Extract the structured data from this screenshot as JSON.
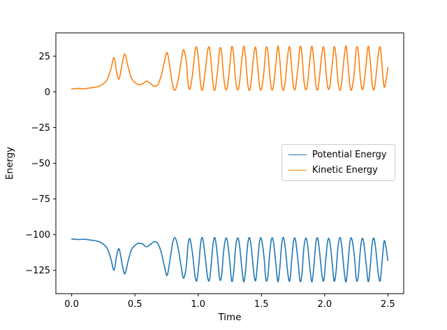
{
  "chart_data": {
    "type": "line",
    "title": "",
    "xlabel": "Time",
    "ylabel": "Energy",
    "xlim": [
      -0.125,
      2.625
    ],
    "ylim": [
      -141.3,
      41.3
    ],
    "grid": false,
    "x_ticks": [
      0.0,
      0.5,
      1.0,
      1.5,
      2.0,
      2.5
    ],
    "x_tick_labels": [
      "0.0",
      "0.5",
      "1.0",
      "1.5",
      "2.0",
      "2.5"
    ],
    "y_ticks": [
      25,
      0,
      -25,
      -50,
      -75,
      -100,
      -125
    ],
    "y_tick_labels": [
      "25",
      "0",
      "−25",
      "−50",
      "−75",
      "−100",
      "−125"
    ],
    "legend": {
      "position": "center right",
      "entries": [
        {
          "label": "Potential Energy",
          "color": "#1f77b4"
        },
        {
          "label": "Kinetic Energy",
          "color": "#ff7f0e"
        }
      ]
    },
    "series": [
      {
        "name": "Potential Energy",
        "color": "#1f77b4",
        "points": [
          [
            0.0,
            -103.0
          ],
          [
            0.05,
            -103.4
          ],
          [
            0.1,
            -103.2
          ],
          [
            0.15,
            -103.8
          ],
          [
            0.2,
            -104.5
          ],
          [
            0.24,
            -106.0
          ],
          [
            0.28,
            -109.5
          ],
          [
            0.31,
            -117.0
          ],
          [
            0.335,
            -125.0
          ],
          [
            0.355,
            -115.0
          ],
          [
            0.375,
            -110.0
          ],
          [
            0.4,
            -121.0
          ],
          [
            0.42,
            -127.5
          ],
          [
            0.445,
            -119.0
          ],
          [
            0.47,
            -111.0
          ],
          [
            0.5,
            -107.5
          ],
          [
            0.53,
            -106.0
          ],
          [
            0.56,
            -106.5
          ],
          [
            0.59,
            -108.5
          ],
          [
            0.62,
            -107.0
          ],
          [
            0.65,
            -105.0
          ],
          [
            0.68,
            -106.0
          ],
          [
            0.71,
            -113.0
          ],
          [
            0.735,
            -123.0
          ],
          [
            0.755,
            -128.5
          ],
          [
            0.775,
            -119.0
          ],
          [
            0.8,
            -105.0
          ],
          [
            0.82,
            -102.5
          ],
          [
            0.845,
            -111.0
          ],
          [
            0.87,
            -125.0
          ],
          [
            0.885,
            -130.5
          ],
          [
            0.905,
            -123.0
          ],
          [
            0.92,
            -107.0
          ],
          [
            0.935,
            -103.0
          ],
          [
            0.955,
            -113.0
          ],
          [
            0.975,
            -129.0
          ],
          [
            0.99,
            -132.0
          ],
          [
            1.005,
            -121.0
          ],
          [
            1.02,
            -106.0
          ],
          [
            1.035,
            -102.5
          ],
          [
            1.055,
            -115.0
          ],
          [
            1.075,
            -130.0
          ],
          [
            1.09,
            -131.5
          ],
          [
            1.105,
            -119.0
          ],
          [
            1.12,
            -105.0
          ],
          [
            1.135,
            -103.0
          ],
          [
            1.155,
            -117.0
          ],
          [
            1.17,
            -131.0
          ],
          [
            1.185,
            -129.0
          ],
          [
            1.2,
            -113.0
          ],
          [
            1.215,
            -103.5
          ],
          [
            1.23,
            -104.0
          ],
          [
            1.25,
            -119.0
          ],
          [
            1.265,
            -132.5
          ],
          [
            1.28,
            -127.0
          ],
          [
            1.295,
            -110.0
          ],
          [
            1.31,
            -102.5
          ],
          [
            1.325,
            -106.0
          ],
          [
            1.345,
            -123.0
          ],
          [
            1.36,
            -133.0
          ],
          [
            1.375,
            -125.0
          ],
          [
            1.39,
            -108.0
          ],
          [
            1.405,
            -102.0
          ],
          [
            1.42,
            -109.0
          ],
          [
            1.44,
            -127.0
          ],
          [
            1.455,
            -132.0
          ],
          [
            1.47,
            -119.0
          ],
          [
            1.485,
            -105.0
          ],
          [
            1.5,
            -103.0
          ],
          [
            1.52,
            -115.0
          ],
          [
            1.535,
            -131.0
          ],
          [
            1.55,
            -130.0
          ],
          [
            1.565,
            -114.0
          ],
          [
            1.58,
            -103.0
          ],
          [
            1.595,
            -105.0
          ],
          [
            1.615,
            -121.0
          ],
          [
            1.63,
            -133.0
          ],
          [
            1.645,
            -124.0
          ],
          [
            1.66,
            -107.0
          ],
          [
            1.675,
            -102.0
          ],
          [
            1.69,
            -110.0
          ],
          [
            1.71,
            -128.0
          ],
          [
            1.725,
            -132.0
          ],
          [
            1.74,
            -117.0
          ],
          [
            1.755,
            -104.0
          ],
          [
            1.77,
            -104.0
          ],
          [
            1.79,
            -119.0
          ],
          [
            1.805,
            -132.5
          ],
          [
            1.82,
            -128.0
          ],
          [
            1.835,
            -110.0
          ],
          [
            1.85,
            -102.5
          ],
          [
            1.865,
            -107.0
          ],
          [
            1.885,
            -125.0
          ],
          [
            1.9,
            -133.0
          ],
          [
            1.915,
            -122.0
          ],
          [
            1.93,
            -106.0
          ],
          [
            1.945,
            -102.5
          ],
          [
            1.96,
            -112.0
          ],
          [
            1.98,
            -129.0
          ],
          [
            1.995,
            -131.5
          ],
          [
            2.01,
            -116.0
          ],
          [
            2.025,
            -104.0
          ],
          [
            2.04,
            -104.5
          ],
          [
            2.06,
            -120.0
          ],
          [
            2.075,
            -132.5
          ],
          [
            2.09,
            -126.0
          ],
          [
            2.105,
            -109.0
          ],
          [
            2.12,
            -102.0
          ],
          [
            2.135,
            -108.0
          ],
          [
            2.155,
            -126.0
          ],
          [
            2.17,
            -133.0
          ],
          [
            2.185,
            -120.0
          ],
          [
            2.2,
            -105.0
          ],
          [
            2.215,
            -103.0
          ],
          [
            2.235,
            -115.0
          ],
          [
            2.25,
            -131.0
          ],
          [
            2.265,
            -130.0
          ],
          [
            2.28,
            -113.0
          ],
          [
            2.295,
            -103.0
          ],
          [
            2.31,
            -106.0
          ],
          [
            2.33,
            -122.0
          ],
          [
            2.345,
            -133.0
          ],
          [
            2.36,
            -123.0
          ],
          [
            2.375,
            -107.0
          ],
          [
            2.39,
            -102.5
          ],
          [
            2.405,
            -111.0
          ],
          [
            2.425,
            -128.0
          ],
          [
            2.44,
            -132.0
          ],
          [
            2.455,
            -118.0
          ],
          [
            2.47,
            -104.5
          ],
          [
            2.485,
            -109.0
          ],
          [
            2.5,
            -118.0
          ]
        ]
      },
      {
        "name": "Kinetic Energy",
        "color": "#ff7f0e",
        "points": [
          [
            0.0,
            2.0
          ],
          [
            0.05,
            2.4
          ],
          [
            0.1,
            2.2
          ],
          [
            0.15,
            2.8
          ],
          [
            0.2,
            3.5
          ],
          [
            0.24,
            5.0
          ],
          [
            0.28,
            8.5
          ],
          [
            0.31,
            16.0
          ],
          [
            0.335,
            24.0
          ],
          [
            0.355,
            14.0
          ],
          [
            0.375,
            9.0
          ],
          [
            0.4,
            20.0
          ],
          [
            0.42,
            26.5
          ],
          [
            0.445,
            18.0
          ],
          [
            0.47,
            10.0
          ],
          [
            0.5,
            6.5
          ],
          [
            0.53,
            5.0
          ],
          [
            0.56,
            5.5
          ],
          [
            0.59,
            7.5
          ],
          [
            0.62,
            6.0
          ],
          [
            0.65,
            4.0
          ],
          [
            0.68,
            5.0
          ],
          [
            0.71,
            12.0
          ],
          [
            0.735,
            22.0
          ],
          [
            0.755,
            27.5
          ],
          [
            0.775,
            18.0
          ],
          [
            0.8,
            4.0
          ],
          [
            0.82,
            1.5
          ],
          [
            0.845,
            10.0
          ],
          [
            0.87,
            24.0
          ],
          [
            0.885,
            29.5
          ],
          [
            0.905,
            22.0
          ],
          [
            0.92,
            6.0
          ],
          [
            0.935,
            2.0
          ],
          [
            0.955,
            12.0
          ],
          [
            0.975,
            28.0
          ],
          [
            0.99,
            31.0
          ],
          [
            1.005,
            20.0
          ],
          [
            1.02,
            5.0
          ],
          [
            1.035,
            1.5
          ],
          [
            1.055,
            14.0
          ],
          [
            1.075,
            29.0
          ],
          [
            1.09,
            30.5
          ],
          [
            1.105,
            18.0
          ],
          [
            1.12,
            4.0
          ],
          [
            1.135,
            2.0
          ],
          [
            1.155,
            16.0
          ],
          [
            1.17,
            30.0
          ],
          [
            1.185,
            28.0
          ],
          [
            1.2,
            12.0
          ],
          [
            1.215,
            2.5
          ],
          [
            1.23,
            3.0
          ],
          [
            1.25,
            18.0
          ],
          [
            1.265,
            31.5
          ],
          [
            1.28,
            26.0
          ],
          [
            1.295,
            9.0
          ],
          [
            1.31,
            1.5
          ],
          [
            1.325,
            5.0
          ],
          [
            1.345,
            22.0
          ],
          [
            1.36,
            32.0
          ],
          [
            1.375,
            24.0
          ],
          [
            1.39,
            7.0
          ],
          [
            1.405,
            1.0
          ],
          [
            1.42,
            8.0
          ],
          [
            1.44,
            26.0
          ],
          [
            1.455,
            31.0
          ],
          [
            1.47,
            18.0
          ],
          [
            1.485,
            4.0
          ],
          [
            1.5,
            2.0
          ],
          [
            1.52,
            14.0
          ],
          [
            1.535,
            30.0
          ],
          [
            1.55,
            29.0
          ],
          [
            1.565,
            13.0
          ],
          [
            1.58,
            2.0
          ],
          [
            1.595,
            4.0
          ],
          [
            1.615,
            20.0
          ],
          [
            1.63,
            32.0
          ],
          [
            1.645,
            23.0
          ],
          [
            1.66,
            6.0
          ],
          [
            1.675,
            1.0
          ],
          [
            1.69,
            9.0
          ],
          [
            1.71,
            27.0
          ],
          [
            1.725,
            31.0
          ],
          [
            1.74,
            16.0
          ],
          [
            1.755,
            3.0
          ],
          [
            1.77,
            3.0
          ],
          [
            1.79,
            18.0
          ],
          [
            1.805,
            31.5
          ],
          [
            1.82,
            27.0
          ],
          [
            1.835,
            9.0
          ],
          [
            1.85,
            1.5
          ],
          [
            1.865,
            6.0
          ],
          [
            1.885,
            24.0
          ],
          [
            1.9,
            32.0
          ],
          [
            1.915,
            21.0
          ],
          [
            1.93,
            5.0
          ],
          [
            1.945,
            1.5
          ],
          [
            1.96,
            11.0
          ],
          [
            1.98,
            28.0
          ],
          [
            1.995,
            30.5
          ],
          [
            2.01,
            15.0
          ],
          [
            2.025,
            3.0
          ],
          [
            2.04,
            3.5
          ],
          [
            2.06,
            19.0
          ],
          [
            2.075,
            31.5
          ],
          [
            2.09,
            25.0
          ],
          [
            2.105,
            8.0
          ],
          [
            2.12,
            1.0
          ],
          [
            2.135,
            7.0
          ],
          [
            2.155,
            25.0
          ],
          [
            2.17,
            32.0
          ],
          [
            2.185,
            19.0
          ],
          [
            2.2,
            4.0
          ],
          [
            2.215,
            2.0
          ],
          [
            2.235,
            14.0
          ],
          [
            2.25,
            30.0
          ],
          [
            2.265,
            29.0
          ],
          [
            2.28,
            12.0
          ],
          [
            2.295,
            2.0
          ],
          [
            2.31,
            5.0
          ],
          [
            2.33,
            21.0
          ],
          [
            2.345,
            32.0
          ],
          [
            2.36,
            22.0
          ],
          [
            2.375,
            6.0
          ],
          [
            2.39,
            1.5
          ],
          [
            2.405,
            10.0
          ],
          [
            2.425,
            27.0
          ],
          [
            2.44,
            31.0
          ],
          [
            2.455,
            17.0
          ],
          [
            2.47,
            3.5
          ],
          [
            2.485,
            8.0
          ],
          [
            2.5,
            17.0
          ]
        ]
      }
    ]
  }
}
